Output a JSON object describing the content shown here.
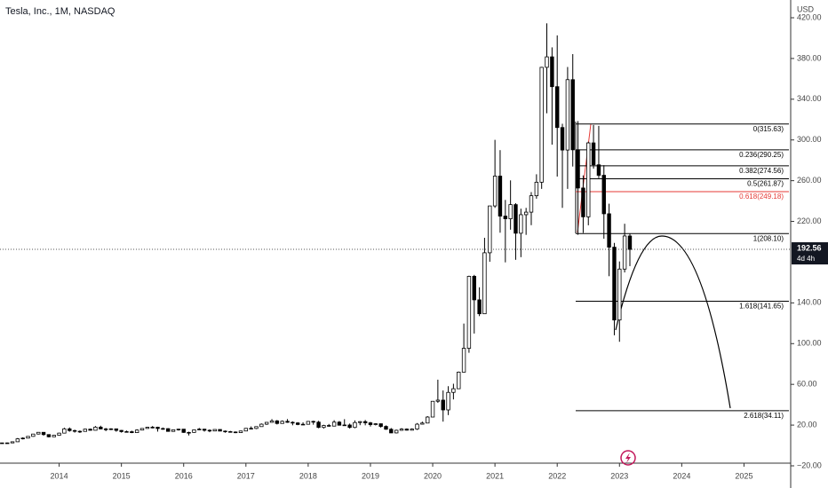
{
  "chart_data": {
    "type": "candlestick",
    "title": "Tesla, Inc., 1M, NASDAQ",
    "currency": "USD",
    "x": [
      2013.083,
      2013.167,
      2013.25,
      2013.333,
      2013.417,
      2013.5,
      2013.583,
      2013.667,
      2013.75,
      2013.833,
      2013.917,
      2014,
      2014.083,
      2014.167,
      2014.25,
      2014.333,
      2014.417,
      2014.5,
      2014.583,
      2014.667,
      2014.75,
      2014.833,
      2014.917,
      2015,
      2015.083,
      2015.167,
      2015.25,
      2015.333,
      2015.417,
      2015.5,
      2015.583,
      2015.667,
      2015.75,
      2015.833,
      2015.917,
      2016,
      2016.083,
      2016.167,
      2016.25,
      2016.333,
      2016.417,
      2016.5,
      2016.583,
      2016.667,
      2016.75,
      2016.833,
      2016.917,
      2017,
      2017.083,
      2017.167,
      2017.25,
      2017.333,
      2017.417,
      2017.5,
      2017.583,
      2017.667,
      2017.75,
      2017.833,
      2017.917,
      2018,
      2018.083,
      2018.167,
      2018.25,
      2018.333,
      2018.417,
      2018.5,
      2018.583,
      2018.667,
      2018.75,
      2018.833,
      2018.917,
      2019,
      2019.083,
      2019.167,
      2019.25,
      2019.333,
      2019.417,
      2019.5,
      2019.583,
      2019.667,
      2019.75,
      2019.833,
      2019.917,
      2020,
      2020.083,
      2020.167,
      2020.25,
      2020.333,
      2020.417,
      2020.5,
      2020.583,
      2020.667,
      2020.75,
      2020.833,
      2020.917,
      2021,
      2021.083,
      2021.167,
      2021.25,
      2021.333,
      2021.417,
      2021.5,
      2021.583,
      2021.667,
      2021.75,
      2021.833,
      2021.917,
      2022,
      2022.083,
      2022.167,
      2022.25,
      2022.333,
      2022.417,
      2022.5,
      2022.583,
      2022.667,
      2022.75,
      2022.833,
      2022.917,
      2023,
      2023.083,
      2023.167
    ],
    "open": [
      2.5,
      2.5,
      2.5,
      3.6,
      6.5,
      7.2,
      8.9,
      11.2,
      12.9,
      10.7,
      8.5,
      10.0,
      12.1,
      16.3,
      14.6,
      13.9,
      13.8,
      16.0,
      14.9,
      18.0,
      16.2,
      16.1,
      16.3,
      14.8,
      13.6,
      13.5,
      12.6,
      15.1,
      16.7,
      17.9,
      17.9,
      16.6,
      16.5,
      13.8,
      15.4,
      16.0,
      12.8,
      12.8,
      15.3,
      16.0,
      14.9,
      14.2,
      15.7,
      14.1,
      13.6,
      13.2,
      12.6,
      14.2,
      16.8,
      16.7,
      18.5,
      20.9,
      22.7,
      24.1,
      21.6,
      23.7,
      22.7,
      22.1,
      20.6,
      20.8,
      23.6,
      22.9,
      17.7,
      19.6,
      19.0,
      22.9,
      19.9,
      20.1,
      17.7,
      22.5,
      23.4,
      22.2,
      20.5,
      21.3,
      18.7,
      15.9,
      12.3,
      14.9,
      16.1,
      15.0,
      16.1,
      20.9,
      22.0,
      27.9,
      43.4,
      44.5,
      34.9,
      52.1,
      55.7,
      72.0,
      95.4,
      166.1,
      143.0,
      129.3,
      189.2,
      235.2,
      264.5,
      225.2,
      222.6,
      236.5,
      208.4,
      226.6,
      229.1,
      245.2,
      258.5,
      371.3,
      381.6,
      352.3,
      312.2,
      290.1,
      359.2,
      290.3,
      252.8,
      224.5,
      297.1,
      275.6,
      265.3,
      227.5,
      194.7,
      123.2,
      173.2,
      205.7
    ],
    "high": [
      2.7,
      2.8,
      3.8,
      7.3,
      8.0,
      9.1,
      11.3,
      12.9,
      12.9,
      10.9,
      10.3,
      12.5,
      17.4,
      17.7,
      15.5,
      14.7,
      16.5,
      16.6,
      19.1,
      19.4,
      17.2,
      16.9,
      16.6,
      15.2,
      14.6,
      14.5,
      15.9,
      16.7,
      18.3,
      19.1,
      18.4,
      17.6,
      16.9,
      15.6,
      16.3,
      16.0,
      13.5,
      15.5,
      17.2,
      16.3,
      15.8,
      15.7,
      15.8,
      14.7,
      14.3,
      13.8,
      14.5,
      17.1,
      18.7,
      18.5,
      21.6,
      22.8,
      25.9,
      25.0,
      24.6,
      25.9,
      23.7,
      22.9,
      22.7,
      24.0,
      24.3,
      24.2,
      20.3,
      21.1,
      24.8,
      24.0,
      25.8,
      21.5,
      24.6,
      23.9,
      25.0,
      23.1,
      21.8,
      21.6,
      19.7,
      17.1,
      15.5,
      17.0,
      16.7,
      16.8,
      22.0,
      23.4,
      28.8,
      43.6,
      64.6,
      54.0,
      58.2,
      60.6,
      72.6,
      119.7,
      166.7,
      167.5,
      155.3,
      203.9,
      235.3,
      300.1,
      290.0,
      241.1,
      260.3,
      237.9,
      232.5,
      233.3,
      248.8,
      266.3,
      371.7,
      414.5,
      390.9,
      402.7,
      315.9,
      371.6,
      384.3,
      318.5,
      265.2,
      298.3,
      314.7,
      313.8,
      275.2,
      237.4,
      198.9,
      180.7,
      217.7,
      207.8
    ],
    "low": [
      2.3,
      2.3,
      2.4,
      3.6,
      5.9,
      7.1,
      8.6,
      10.8,
      9.6,
      7.9,
      8.3,
      9.5,
      12.1,
      13.5,
      12.6,
      12.3,
      13.6,
      14.6,
      14.8,
      15.9,
      14.0,
      15.1,
      13.5,
      12.6,
      12.9,
      12.1,
      12.5,
      14.9,
      16.5,
      16.8,
      13.6,
      15.4,
      13.8,
      13.5,
      14.6,
      12.4,
      9.8,
      12.5,
      14.9,
      13.6,
      13.0,
      14.0,
      14.0,
      12.5,
      13.1,
      12.1,
      12.4,
      14.2,
      16.2,
      16.1,
      18.5,
      20.2,
      22.6,
      20.6,
      21.5,
      22.2,
      19.8,
      19.9,
      20.3,
      20.5,
      20.4,
      16.9,
      16.6,
      18.3,
      18.9,
      19.5,
      19.2,
      16.6,
      16.9,
      19.9,
      19.8,
      18.6,
      19.7,
      17.5,
      15.4,
      12.2,
      11.8,
      14.4,
      14.7,
      14.7,
      15.2,
      20.7,
      21.8,
      27.9,
      41.8,
      23.4,
      29.8,
      45.2,
      55.6,
      72.0,
      91.0,
      109.9,
      127.0,
      129.2,
      180.4,
      233.3,
      208.9,
      179.8,
      211.9,
      182.3,
      184.9,
      206.8,
      216.3,
      242.3,
      252.0,
      326.2,
      295.4,
      264.0,
      233.3,
      252.0,
      273.9,
      206.9,
      208.7,
      216.2,
      271.8,
      262.5,
      203.0,
      166.2,
      108.2,
      101.8,
      169.9,
      176.1
    ],
    "close": [
      2.5,
      2.5,
      3.6,
      6.5,
      7.2,
      8.9,
      11.2,
      12.9,
      10.7,
      8.5,
      10.0,
      12.1,
      16.3,
      14.6,
      13.9,
      13.8,
      16.0,
      14.9,
      18.0,
      16.2,
      16.1,
      16.3,
      14.8,
      13.6,
      13.5,
      12.6,
      15.1,
      16.7,
      17.9,
      17.9,
      16.6,
      16.5,
      13.8,
      15.4,
      16.0,
      12.8,
      12.8,
      15.3,
      16.0,
      14.9,
      14.2,
      15.7,
      14.1,
      13.6,
      13.2,
      12.6,
      14.2,
      16.8,
      16.7,
      18.5,
      20.9,
      22.7,
      24.1,
      21.6,
      23.7,
      22.7,
      22.1,
      20.6,
      20.8,
      23.6,
      22.9,
      17.7,
      19.6,
      19.0,
      22.9,
      19.9,
      20.1,
      17.7,
      22.5,
      23.4,
      22.2,
      20.5,
      21.3,
      18.7,
      15.9,
      12.3,
      14.9,
      16.1,
      15.0,
      16.1,
      20.9,
      22.0,
      27.9,
      43.4,
      44.5,
      34.9,
      52.1,
      55.7,
      72.0,
      95.4,
      166.1,
      143.0,
      129.3,
      189.2,
      235.2,
      264.5,
      225.2,
      222.6,
      236.5,
      208.4,
      226.6,
      229.1,
      245.2,
      258.5,
      371.3,
      381.6,
      352.3,
      312.2,
      290.1,
      359.2,
      290.3,
      252.8,
      224.5,
      297.1,
      275.6,
      265.3,
      227.5,
      194.7,
      123.2,
      173.2,
      205.7,
      192.56
    ],
    "up_color": "#ffffff",
    "down_color": "#000000",
    "wick_color": "#000000",
    "xlim": [
      2013.05,
      2025.75
    ],
    "xticks": [
      2014,
      2015,
      2016,
      2017,
      2018,
      2019,
      2020,
      2021,
      2022,
      2023,
      2024,
      2025
    ],
    "ylim": [
      -20,
      420
    ],
    "yticks": [
      {
        "value": -20,
        "label": "−20.00"
      },
      {
        "value": 20,
        "label": "20.00"
      },
      {
        "value": 60,
        "label": "60.00"
      },
      {
        "value": 100,
        "label": "100.00"
      },
      {
        "value": 140,
        "label": "140.00"
      },
      {
        "value": 220,
        "label": "220.00"
      },
      {
        "value": 260,
        "label": "260.00"
      },
      {
        "value": 300,
        "label": "300.00"
      },
      {
        "value": 340,
        "label": "340.00"
      },
      {
        "value": 380,
        "label": "380.00"
      },
      {
        "value": 420,
        "label": "420.00"
      }
    ],
    "last_price": 192.56,
    "countdown": "4d 4h",
    "fib_levels": [
      {
        "value": 315.63,
        "label": "0(315.63)",
        "color": "#000000"
      },
      {
        "value": 290.25,
        "label": "0.236(290.25)",
        "color": "#000000"
      },
      {
        "value": 274.56,
        "label": "0.382(274.56)",
        "color": "#000000"
      },
      {
        "value": 261.87,
        "label": "0.5(261.87)",
        "color": "#000000"
      },
      {
        "value": 249.18,
        "label": "0.618(249.18)",
        "color": "#e53935"
      },
      {
        "value": 208.1,
        "label": "1(208.10)",
        "color": "#000000"
      },
      {
        "value": 141.65,
        "label": "1.618(141.65)",
        "color": "#000000"
      },
      {
        "value": 34.11,
        "label": "2.618(34.11)",
        "color": "#000000"
      }
    ]
  }
}
